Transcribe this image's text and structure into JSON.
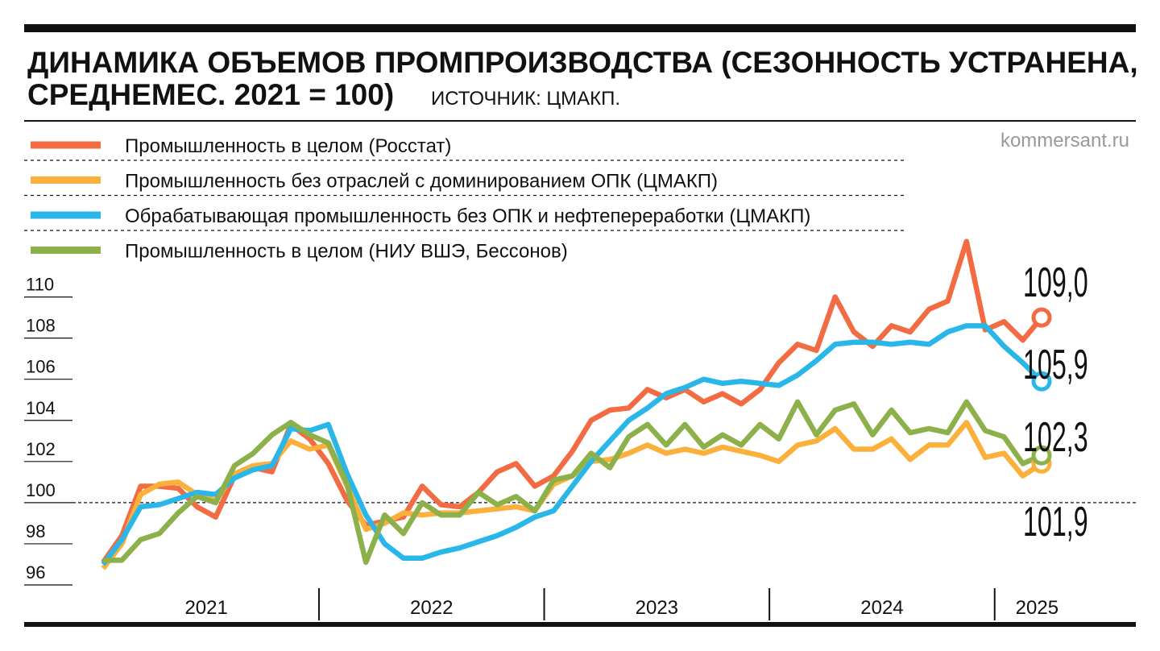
{
  "chart_data": {
    "type": "line",
    "title_lines": [
      "ДИНАМИКА ОБЪЕМОВ ПРОМПРОИЗВОДСТВА (СЕЗОННОСТЬ УСТРАНЕНА,",
      "СРЕДНЕМЕС. 2021 = 100)"
    ],
    "source": "ИСТОЧНИК: ЦМАКП.",
    "watermark": "kommersant.ru",
    "years": [
      "2021",
      "2022",
      "2023",
      "2024",
      "2025"
    ],
    "baseline": 100,
    "ylim": [
      96,
      113
    ],
    "yticks": [
      96,
      98,
      100,
      102,
      104,
      106,
      108,
      110
    ],
    "series": [
      {
        "name": "Промышленность в целом (Росстат)",
        "color": "#f26b43",
        "end_label": "109,0",
        "values": [
          97.1,
          98.4,
          100.8,
          100.8,
          100.7,
          99.8,
          99.3,
          101.3,
          101.7,
          101.5,
          103.8,
          103.1,
          101.9,
          100.1,
          98.9,
          99.1,
          99.3,
          100.8,
          99.9,
          99.8,
          100.5,
          101.5,
          101.9,
          100.8,
          101.3,
          102.5,
          104.0,
          104.5,
          104.6,
          105.5,
          105.1,
          105.5,
          104.9,
          105.3,
          104.8,
          105.5,
          106.8,
          107.7,
          107.4,
          110.0,
          108.3,
          107.6,
          108.6,
          108.3,
          109.4,
          109.8,
          112.7,
          108.4,
          108.8,
          107.9,
          109.0
        ]
      },
      {
        "name": "Промышленность без отраслей с доминированием ОПК (ЦМАКП)",
        "color": "#fbb03b",
        "end_label": "101,9",
        "values": [
          96.8,
          98.0,
          100.4,
          100.9,
          101.0,
          100.4,
          100.1,
          101.4,
          101.8,
          101.9,
          103.0,
          102.6,
          102.8,
          100.8,
          98.7,
          99.0,
          99.5,
          99.4,
          99.5,
          99.5,
          99.6,
          99.7,
          99.8,
          99.6,
          100.9,
          101.3,
          102.0,
          102.1,
          102.4,
          102.8,
          102.4,
          102.6,
          102.4,
          102.7,
          102.5,
          102.3,
          102.0,
          102.8,
          103.0,
          103.6,
          102.6,
          102.6,
          103.1,
          102.1,
          102.8,
          102.8,
          103.9,
          102.2,
          102.4,
          101.3,
          101.9
        ]
      },
      {
        "name": "Обрабатывающая промышленность без ОПК и нефтепереработки (ЦМАКП)",
        "color": "#29b6e8",
        "end_label": "105,9",
        "values": [
          97.0,
          98.2,
          99.8,
          99.9,
          100.2,
          100.5,
          100.4,
          101.2,
          101.6,
          101.8,
          103.6,
          103.5,
          103.8,
          101.4,
          99.4,
          98.0,
          97.3,
          97.3,
          97.6,
          97.8,
          98.1,
          98.4,
          98.8,
          99.3,
          99.6,
          100.8,
          102.0,
          103.0,
          104.0,
          104.6,
          105.3,
          105.6,
          106.0,
          105.8,
          105.9,
          105.8,
          105.7,
          106.2,
          106.9,
          107.7,
          107.8,
          107.8,
          107.7,
          107.8,
          107.7,
          108.3,
          108.6,
          108.6,
          107.6,
          106.8,
          105.9
        ]
      },
      {
        "name": "Промышленность в целом (НИУ ВШЭ, Бессонов)",
        "color": "#8cb04a",
        "end_label": "102,3",
        "values": [
          97.2,
          97.2,
          98.2,
          98.5,
          99.5,
          100.3,
          100.0,
          101.8,
          102.4,
          103.3,
          103.9,
          103.3,
          102.9,
          100.9,
          97.1,
          99.4,
          98.5,
          100.0,
          99.4,
          99.4,
          100.5,
          99.9,
          100.3,
          99.6,
          101.1,
          101.3,
          102.4,
          101.7,
          103.2,
          103.8,
          102.8,
          103.8,
          102.7,
          103.3,
          102.8,
          103.8,
          103.1,
          104.9,
          103.3,
          104.5,
          104.8,
          103.3,
          104.5,
          103.4,
          103.6,
          103.4,
          104.9,
          103.5,
          103.2,
          101.9,
          102.3
        ]
      }
    ]
  }
}
